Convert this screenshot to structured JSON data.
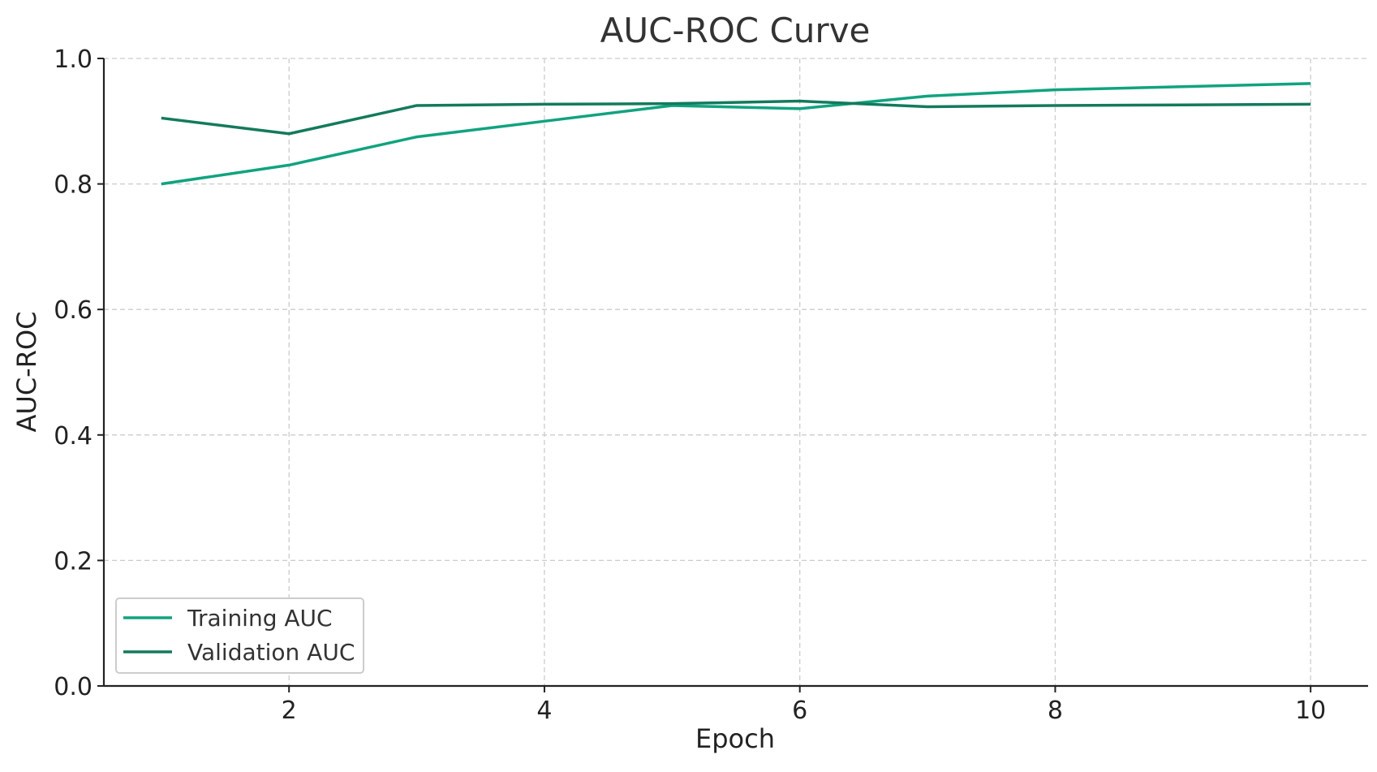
{
  "chart_data": {
    "type": "line",
    "title": "AUC-ROC Curve",
    "xlabel": "Epoch",
    "ylabel": "AUC-ROC",
    "x": [
      1,
      2,
      3,
      4,
      5,
      6,
      7,
      8,
      9,
      10
    ],
    "xlim": [
      0.55,
      10.45
    ],
    "ylim": [
      0.0,
      1.0
    ],
    "xticks": [
      2,
      4,
      6,
      8,
      10
    ],
    "xtick_labels": [
      "2",
      "4",
      "6",
      "8",
      "10"
    ],
    "yticks": [
      0.0,
      0.2,
      0.4,
      0.6,
      0.8,
      1.0
    ],
    "ytick_labels": [
      "0.0",
      "0.2",
      "0.4",
      "0.6",
      "0.8",
      "1.0"
    ],
    "grid": true,
    "legend_position": "lower-left",
    "series": [
      {
        "name": "Training AUC",
        "color": "#10a37f",
        "values": [
          0.8,
          0.83,
          0.875,
          0.9,
          0.925,
          0.92,
          0.94,
          0.95,
          0.955,
          0.96
        ]
      },
      {
        "name": "Validation AUC",
        "color": "#137a5c",
        "values": [
          0.905,
          0.88,
          0.925,
          0.927,
          0.928,
          0.932,
          0.923,
          0.925,
          0.926,
          0.927
        ]
      }
    ]
  }
}
